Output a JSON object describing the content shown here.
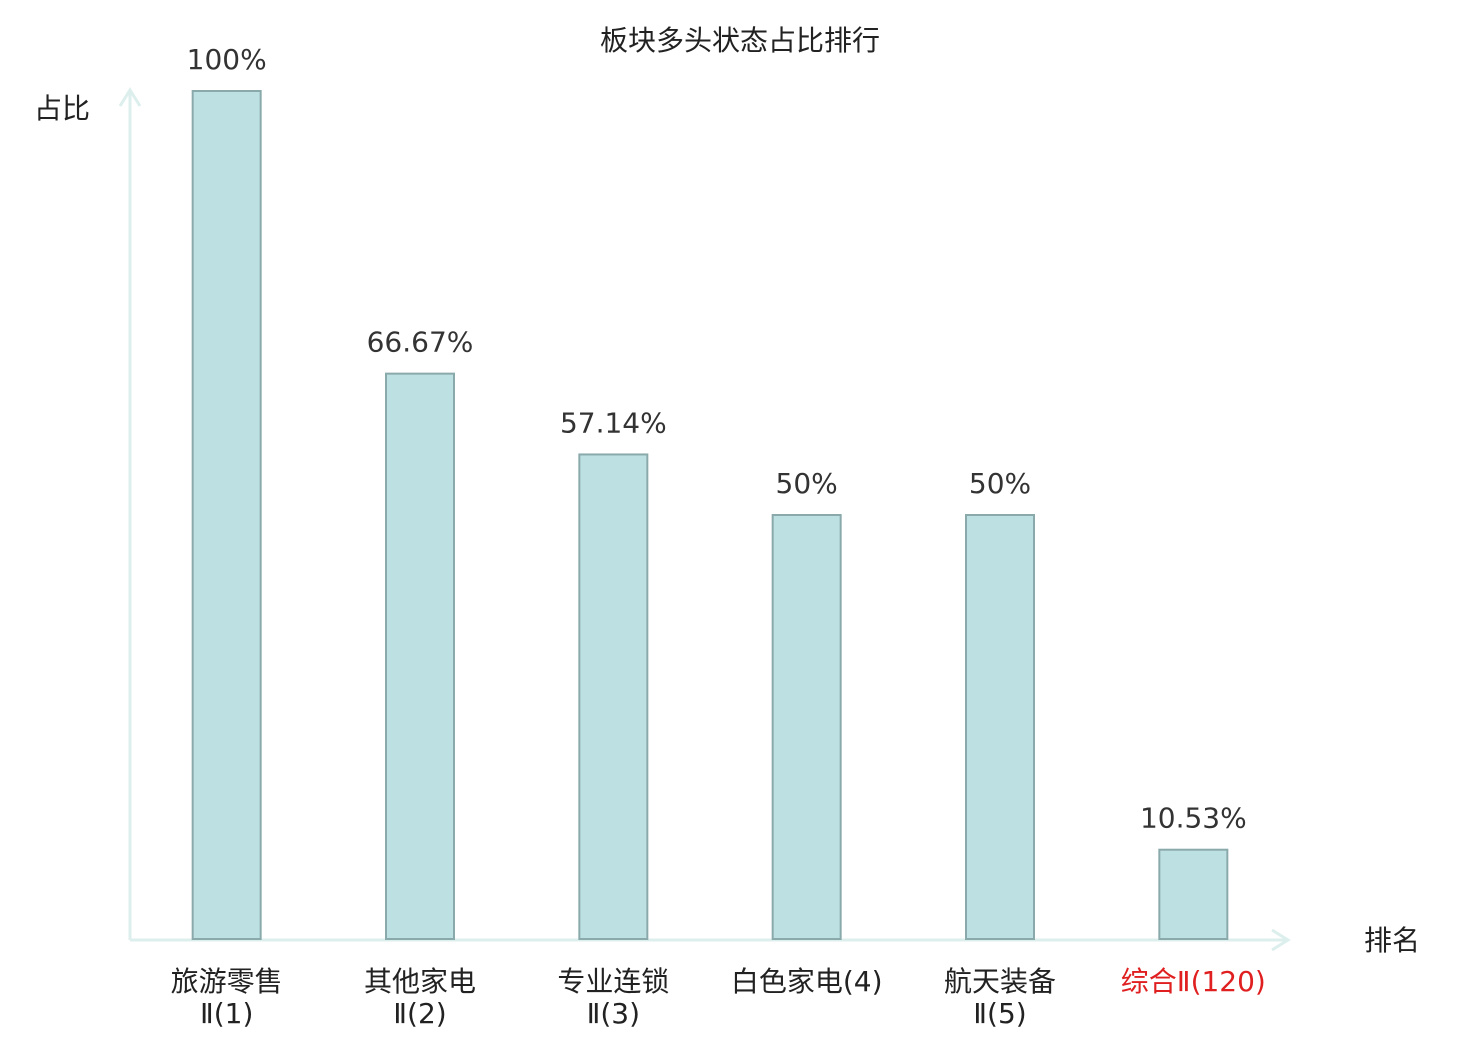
{
  "chart_data": {
    "type": "bar",
    "title": "板块多头状态占比排行",
    "y_label": "占比",
    "x_label": "排名",
    "categories": [
      [
        "旅游零售",
        "Ⅱ(1)"
      ],
      [
        "其他家电",
        "Ⅱ(2)"
      ],
      [
        "专业连锁",
        "Ⅱ(3)"
      ],
      [
        "白色家电(4)"
      ],
      [
        "航天装备",
        "Ⅱ(5)"
      ],
      [
        "综合Ⅱ(120)"
      ]
    ],
    "category_label_colors": [
      "#222222",
      "#222222",
      "#222222",
      "#222222",
      "#222222",
      "#e02020"
    ],
    "values": [
      100,
      66.67,
      57.14,
      50,
      50,
      10.53
    ],
    "value_labels": [
      "100%",
      "66.67%",
      "57.14%",
      "50%",
      "50%",
      "10.53%"
    ],
    "color": "#bde0e3",
    "edge_color": "#8aa9ab",
    "ylim": [
      0,
      100
    ]
  }
}
